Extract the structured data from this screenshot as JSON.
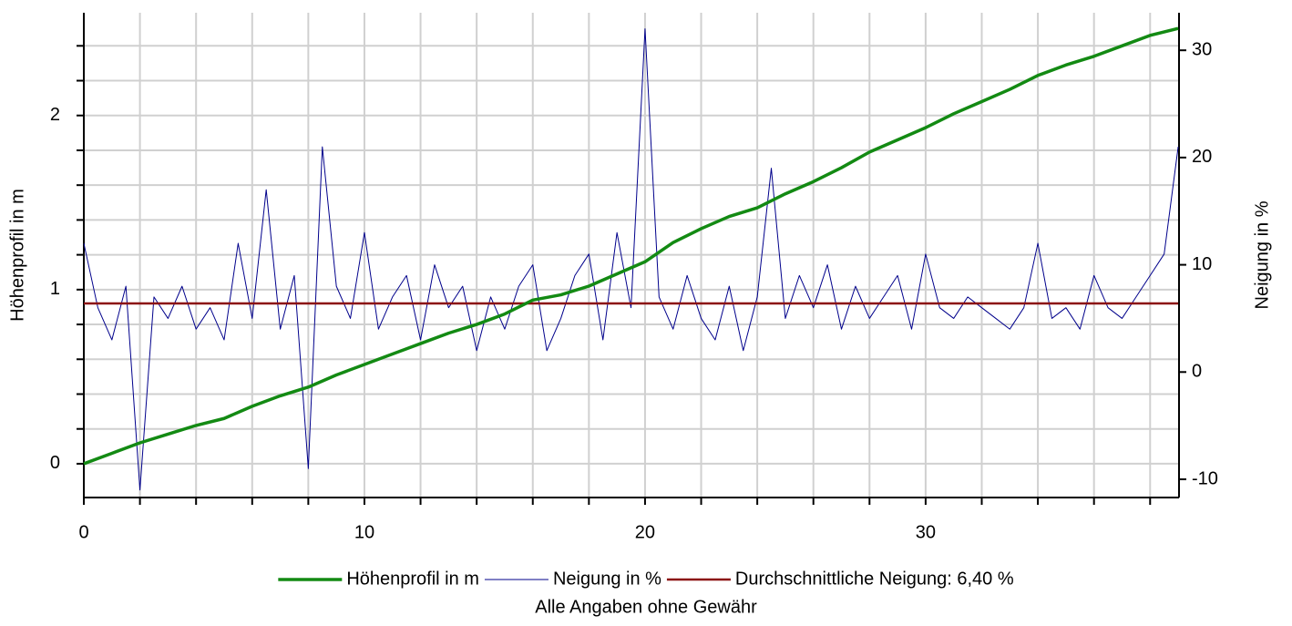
{
  "chart_data": {
    "type": "line",
    "ylabel": "Höhenprofil in m",
    "y2label": "Neigung in %",
    "caption": "Alle Angaben ohne Gewähr",
    "xlim": [
      0,
      39.03
    ],
    "xticks": [
      0,
      10,
      20,
      30
    ],
    "xminorticks": [
      2,
      4,
      6,
      8,
      12,
      14,
      16,
      18,
      22,
      24,
      26,
      28,
      32,
      34,
      36,
      38
    ],
    "ylim": [
      -0.194,
      2.59
    ],
    "yticks": [
      0,
      1,
      2
    ],
    "yminorticks": [
      -0.2,
      0.2,
      0.4,
      0.6,
      0.8,
      1.2,
      1.4,
      1.6,
      1.8,
      2.2,
      2.4
    ],
    "y2lim": [
      -11.7,
      33.5
    ],
    "y2ticks": [
      -10,
      0,
      10,
      20,
      30
    ],
    "grid": true,
    "series": [
      {
        "name": "Höhenprofil in m",
        "color": "#138a13",
        "axis": "y",
        "width": 3.5,
        "x": [
          0,
          1,
          2,
          3,
          4,
          5,
          6,
          7,
          8,
          9,
          10,
          11,
          12,
          13,
          14,
          15,
          16,
          17,
          18,
          19,
          20,
          21,
          22,
          23,
          24,
          25,
          26,
          27,
          28,
          29,
          30,
          31,
          32,
          33,
          34,
          35,
          36,
          37,
          38,
          39
        ],
        "values": [
          0,
          0.06,
          0.12,
          0.17,
          0.22,
          0.26,
          0.33,
          0.39,
          0.44,
          0.51,
          0.57,
          0.63,
          0.69,
          0.75,
          0.8,
          0.86,
          0.94,
          0.97,
          1.02,
          1.09,
          1.16,
          1.27,
          1.35,
          1.42,
          1.47,
          1.55,
          1.62,
          1.7,
          1.79,
          1.86,
          1.93,
          2.01,
          2.08,
          2.15,
          2.23,
          2.29,
          2.34,
          2.4,
          2.46,
          2.5
        ]
      },
      {
        "name": "Neigung in %",
        "color": "#00008b",
        "axis": "y2",
        "width": 1,
        "x": [
          0,
          0.5,
          1,
          1.5,
          2,
          2.5,
          3,
          3.5,
          4,
          4.5,
          5,
          5.5,
          6,
          6.5,
          7,
          7.5,
          8,
          8.5,
          9,
          9.5,
          10,
          10.5,
          11,
          11.5,
          12,
          12.5,
          13,
          13.5,
          14,
          14.5,
          15,
          15.5,
          16,
          16.5,
          17,
          17.5,
          18,
          18.5,
          19,
          19.5,
          20,
          20.5,
          21,
          21.5,
          22,
          22.5,
          23,
          23.5,
          24,
          24.5,
          25,
          25.5,
          26,
          26.5,
          27,
          27.5,
          28,
          28.5,
          29,
          29.5,
          30,
          30.5,
          31,
          31.5,
          32,
          32.5,
          33,
          33.5,
          34,
          34.5,
          35,
          35.5,
          36,
          36.5,
          37,
          37.5,
          38,
          38.5,
          39
        ],
        "values": [
          12,
          6,
          3,
          8,
          -11,
          7,
          5,
          8,
          4,
          6,
          3,
          12,
          5,
          17,
          4,
          9,
          -9,
          21,
          8,
          5,
          13,
          4,
          7,
          9,
          3,
          10,
          6,
          8,
          2,
          7,
          4,
          8,
          10,
          2,
          5,
          9,
          11,
          3,
          13,
          6,
          32,
          7,
          4,
          9,
          5,
          3,
          8,
          2,
          7,
          19,
          5,
          9,
          6,
          10,
          4,
          8,
          5,
          7,
          9,
          4,
          11,
          6,
          5,
          7,
          6,
          5,
          4,
          6,
          12,
          5,
          6,
          4,
          9,
          6,
          5,
          7,
          9,
          11,
          21
        ]
      },
      {
        "name": "Durchschnittliche Neigung: 6,40 %",
        "color": "#8b1010",
        "axis": "y2",
        "width": 2.5,
        "x": [
          0,
          39
        ],
        "values": [
          6.4,
          6.4
        ]
      }
    ]
  }
}
